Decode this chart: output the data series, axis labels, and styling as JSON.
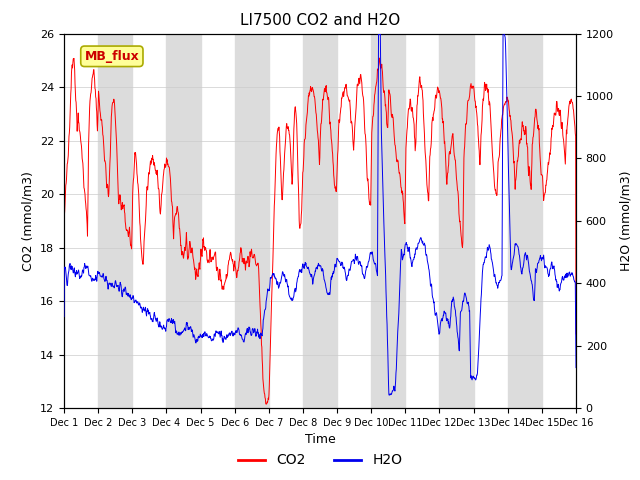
{
  "title": "LI7500 CO2 and H2O",
  "xlabel": "Time",
  "ylabel_left": "CO2 (mmol/m3)",
  "ylabel_right": "H2O (mmol/m3)",
  "ylim_left": [
    12,
    26
  ],
  "ylim_right": [
    0,
    1200
  ],
  "yticks_left": [
    12,
    14,
    16,
    18,
    20,
    22,
    24,
    26
  ],
  "yticks_right": [
    0,
    200,
    400,
    600,
    800,
    1000,
    1200
  ],
  "xtick_labels": [
    "Dec 1",
    "Dec 2",
    "Dec 3",
    "Dec 4",
    "Dec 5",
    "Dec 6",
    "Dec 7",
    "Dec 8",
    "Dec 9",
    "Dec 10",
    "Dec 11",
    "Dec 12",
    "Dec 13",
    "Dec 14",
    "Dec 15",
    "Dec 16"
  ],
  "co2_color": "#FF0000",
  "h2o_color": "#0000EE",
  "legend_co2": "CO2",
  "legend_h2o": "H2O",
  "annotation_text": "MB_flux",
  "bg_band_color": "#DCDCDC",
  "title_fontsize": 11,
  "label_fontsize": 9,
  "tick_fontsize": 8,
  "legend_fontsize": 10
}
